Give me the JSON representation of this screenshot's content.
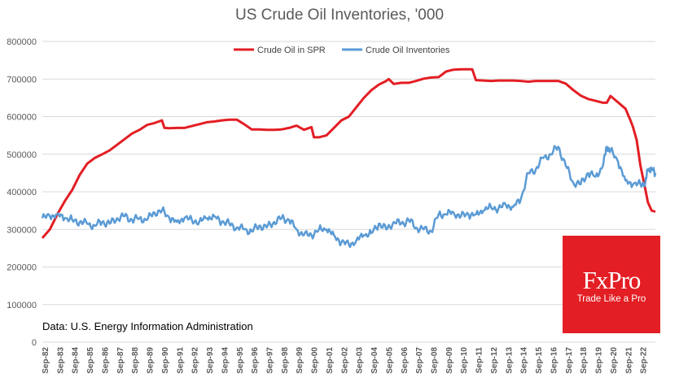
{
  "chart_data": {
    "type": "line",
    "title": "US Crude Oil Inventories, '000",
    "xlabel": "",
    "ylabel": "",
    "ylim": [
      0,
      800000
    ],
    "yticks": [
      0,
      100000,
      200000,
      300000,
      400000,
      500000,
      600000,
      700000,
      800000
    ],
    "yticklabels": [
      "0",
      "100000",
      "200000",
      "300000",
      "400000",
      "500000",
      "600000",
      "700000",
      "800000"
    ],
    "xlim": [
      "1982-09",
      "2023-09"
    ],
    "xticklabels": [
      "Sep-82",
      "Sep-83",
      "Sep-84",
      "Sep-85",
      "Sep-86",
      "Sep-87",
      "Sep-88",
      "Sep-89",
      "Sep-90",
      "Sep-91",
      "Sep-92",
      "Sep-93",
      "Sep-94",
      "Sep-95",
      "Sep-96",
      "Sep-97",
      "Sep-98",
      "Sep-99",
      "Sep-00",
      "Sep-01",
      "Sep-02",
      "Sep-03",
      "Sep-04",
      "Sep-05",
      "Sep-06",
      "Sep-07",
      "Sep-08",
      "Sep-09",
      "Sep-10",
      "Sep-11",
      "Sep-12",
      "Sep-13",
      "Sep-14",
      "Sep-15",
      "Sep-16",
      "Sep-17",
      "Sep-18",
      "Sep-19",
      "Sep-20",
      "Sep-21",
      "Sep-22"
    ],
    "grid": true,
    "legend_position": "top-center",
    "series": [
      {
        "name": "Crude Oil in SPR",
        "color": "#e31e24",
        "x": [
          "1982-09",
          "1983-03",
          "1983-09",
          "1984-03",
          "1984-09",
          "1985-03",
          "1985-09",
          "1986-03",
          "1986-09",
          "1987-03",
          "1987-09",
          "1988-03",
          "1988-09",
          "1989-03",
          "1989-09",
          "1990-03",
          "1990-09",
          "1990-11",
          "1991-03",
          "1991-09",
          "1992-03",
          "1992-09",
          "1993-03",
          "1993-09",
          "1994-03",
          "1994-09",
          "1995-03",
          "1995-09",
          "1996-03",
          "1996-09",
          "1997-03",
          "1997-09",
          "1998-03",
          "1998-09",
          "1999-03",
          "1999-09",
          "2000-03",
          "2000-09",
          "2000-11",
          "2001-03",
          "2001-09",
          "2002-03",
          "2002-09",
          "2003-03",
          "2003-09",
          "2004-03",
          "2004-09",
          "2005-03",
          "2005-09",
          "2005-11",
          "2006-03",
          "2006-09",
          "2007-03",
          "2007-09",
          "2008-03",
          "2008-09",
          "2009-03",
          "2009-09",
          "2010-03",
          "2010-09",
          "2011-03",
          "2011-06",
          "2011-09",
          "2012-03",
          "2012-09",
          "2013-03",
          "2013-09",
          "2014-03",
          "2014-09",
          "2015-03",
          "2015-09",
          "2016-03",
          "2016-09",
          "2017-03",
          "2017-09",
          "2018-03",
          "2018-09",
          "2019-03",
          "2019-09",
          "2020-03",
          "2020-06",
          "2020-09",
          "2021-03",
          "2021-09",
          "2022-01",
          "2022-03",
          "2022-06",
          "2022-09",
          "2023-01",
          "2023-03",
          "2023-06",
          "2023-09"
        ],
        "values": [
          277000,
          300000,
          340000,
          375000,
          405000,
          445000,
          475000,
          490000,
          500000,
          510000,
          525000,
          540000,
          555000,
          565000,
          578000,
          583000,
          590000,
          570000,
          569000,
          570000,
          570000,
          575000,
          580000,
          585000,
          587000,
          590000,
          592000,
          592000,
          580000,
          566000,
          566000,
          565000,
          565000,
          566000,
          570000,
          576000,
          565000,
          572000,
          545000,
          545000,
          550000,
          570000,
          590000,
          600000,
          625000,
          650000,
          670000,
          685000,
          695000,
          700000,
          687000,
          690000,
          690000,
          695000,
          701000,
          704000,
          705000,
          720000,
          725000,
          726000,
          726000,
          726000,
          697000,
          696000,
          695000,
          696000,
          696000,
          696000,
          695000,
          693000,
          695000,
          695000,
          695000,
          695000,
          688000,
          671000,
          656000,
          647000,
          642000,
          637000,
          637000,
          655000,
          638000,
          621000,
          590000,
          572000,
          538000,
          470000,
          405000,
          372000,
          350000,
          347000
        ]
      },
      {
        "name": "Crude Oil Inventories",
        "color": "#5b9bd5",
        "x": [
          "1982-09",
          "1983-03",
          "1983-09",
          "1984-03",
          "1984-09",
          "1985-03",
          "1985-09",
          "1986-03",
          "1986-09",
          "1987-03",
          "1987-09",
          "1988-03",
          "1988-09",
          "1989-03",
          "1989-09",
          "1990-03",
          "1990-09",
          "1991-03",
          "1991-09",
          "1992-03",
          "1992-09",
          "1993-03",
          "1993-09",
          "1994-03",
          "1994-09",
          "1995-03",
          "1995-09",
          "1996-03",
          "1996-09",
          "1997-03",
          "1997-09",
          "1998-03",
          "1998-09",
          "1999-03",
          "1999-09",
          "2000-03",
          "2000-09",
          "2001-03",
          "2001-09",
          "2002-03",
          "2002-09",
          "2003-03",
          "2003-09",
          "2004-03",
          "2004-09",
          "2005-03",
          "2005-09",
          "2006-03",
          "2006-09",
          "2007-03",
          "2007-09",
          "2008-03",
          "2008-09",
          "2009-03",
          "2009-09",
          "2010-03",
          "2010-09",
          "2011-03",
          "2011-09",
          "2012-03",
          "2012-09",
          "2013-03",
          "2013-09",
          "2014-03",
          "2014-09",
          "2015-03",
          "2015-09",
          "2016-03",
          "2016-09",
          "2017-03",
          "2017-09",
          "2018-03",
          "2018-09",
          "2019-03",
          "2019-09",
          "2020-03",
          "2020-06",
          "2020-09",
          "2021-03",
          "2021-09",
          "2022-03",
          "2022-09",
          "2023-01",
          "2023-03",
          "2023-06",
          "2023-09"
        ],
        "values": [
          330000,
          335000,
          340000,
          330000,
          325000,
          320000,
          315000,
          310000,
          320000,
          315000,
          330000,
          335000,
          325000,
          330000,
          325000,
          345000,
          350000,
          330000,
          320000,
          330000,
          325000,
          320000,
          330000,
          335000,
          320000,
          315000,
          305000,
          300000,
          295000,
          310000,
          305000,
          320000,
          330000,
          325000,
          300000,
          285000,
          285000,
          300000,
          300000,
          285000,
          265000,
          260000,
          270000,
          285000,
          290000,
          315000,
          300000,
          320000,
          315000,
          325000,
          305000,
          300000,
          295000,
          340000,
          340000,
          345000,
          335000,
          340000,
          340000,
          350000,
          360000,
          355000,
          365000,
          360000,
          380000,
          450000,
          460000,
          490000,
          500000,
          520000,
          470000,
          425000,
          420000,
          450000,
          440000,
          470000,
          520000,
          510000,
          480000,
          430000,
          420000,
          420000,
          425000,
          460000,
          460000,
          450000
        ]
      }
    ],
    "annotation": "Data: U.S. Energy Information Administration"
  },
  "logo": {
    "name": "FxPro",
    "tagline": "Trade Like a Pro",
    "color": "#e31e24"
  }
}
